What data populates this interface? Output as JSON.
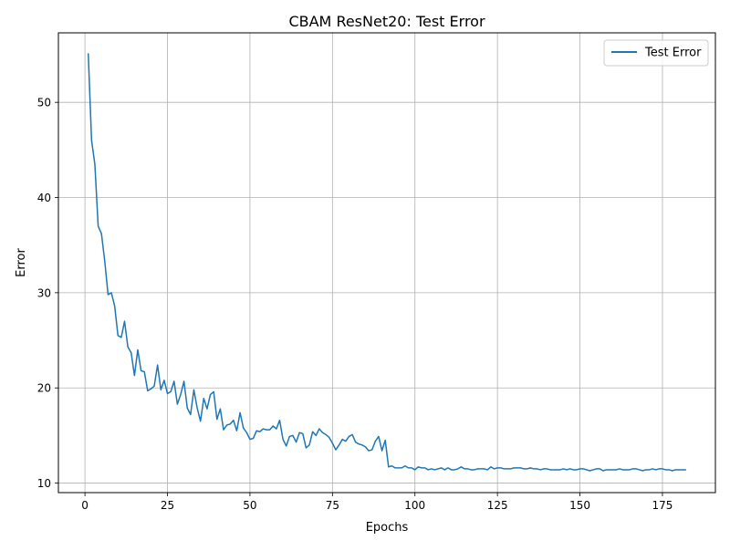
{
  "chart_data": {
    "type": "line",
    "title": "CBAM ResNet20: Test Error",
    "xlabel": "Epochs",
    "ylabel": "Error",
    "xlim": [
      -8.05,
      191.05
    ],
    "ylim": [
      9.0,
      57.3
    ],
    "xticks": [
      0,
      25,
      50,
      75,
      100,
      125,
      150,
      175
    ],
    "yticks": [
      10,
      20,
      30,
      40,
      50
    ],
    "grid": true,
    "legend": {
      "position": "top-right"
    },
    "series": [
      {
        "name": "Test Error",
        "color": "#1f77b4",
        "x_start": 1,
        "x_step": 1,
        "values": [
          55.1,
          46.0,
          43.5,
          37.0,
          36.2,
          33.3,
          29.8,
          30.0,
          28.6,
          25.5,
          25.3,
          27.0,
          24.3,
          23.7,
          21.3,
          24.0,
          21.8,
          21.7,
          19.7,
          19.9,
          20.2,
          22.4,
          19.8,
          20.8,
          19.4,
          19.6,
          20.7,
          18.3,
          19.3,
          20.7,
          17.9,
          17.2,
          19.8,
          17.9,
          16.5,
          18.9,
          17.8,
          19.3,
          19.6,
          16.7,
          17.8,
          15.6,
          16.1,
          16.2,
          16.6,
          15.5,
          17.4,
          15.8,
          15.3,
          14.6,
          14.7,
          15.5,
          15.4,
          15.7,
          15.6,
          15.6,
          16.0,
          15.7,
          16.6,
          14.6,
          13.9,
          14.9,
          15.0,
          14.3,
          15.3,
          15.2,
          13.7,
          14.0,
          15.4,
          15.0,
          15.7,
          15.3,
          15.1,
          14.8,
          14.2,
          13.5,
          14.0,
          14.6,
          14.4,
          14.9,
          15.1,
          14.3,
          14.1,
          14.0,
          13.8,
          13.4,
          13.5,
          14.4,
          14.9,
          13.4,
          14.5,
          11.7,
          11.8,
          11.6,
          11.6,
          11.6,
          11.8,
          11.6,
          11.6,
          11.4,
          11.7,
          11.6,
          11.6,
          11.4,
          11.5,
          11.4,
          11.5,
          11.6,
          11.4,
          11.6,
          11.4,
          11.4,
          11.5,
          11.7,
          11.5,
          11.5,
          11.4,
          11.4,
          11.5,
          11.5,
          11.5,
          11.4,
          11.7,
          11.5,
          11.6,
          11.6,
          11.5,
          11.5,
          11.5,
          11.6,
          11.6,
          11.6,
          11.5,
          11.5,
          11.6,
          11.5,
          11.5,
          11.4,
          11.5,
          11.5,
          11.4,
          11.4,
          11.4,
          11.4,
          11.5,
          11.4,
          11.5,
          11.4,
          11.4,
          11.5,
          11.5,
          11.4,
          11.3,
          11.4,
          11.5,
          11.5,
          11.3,
          11.4,
          11.4,
          11.4,
          11.4,
          11.5,
          11.4,
          11.4,
          11.4,
          11.5,
          11.5,
          11.4,
          11.3,
          11.4,
          11.4,
          11.5,
          11.4,
          11.5,
          11.5,
          11.4,
          11.4,
          11.3,
          11.4,
          11.4,
          11.4,
          11.4
        ]
      }
    ]
  }
}
